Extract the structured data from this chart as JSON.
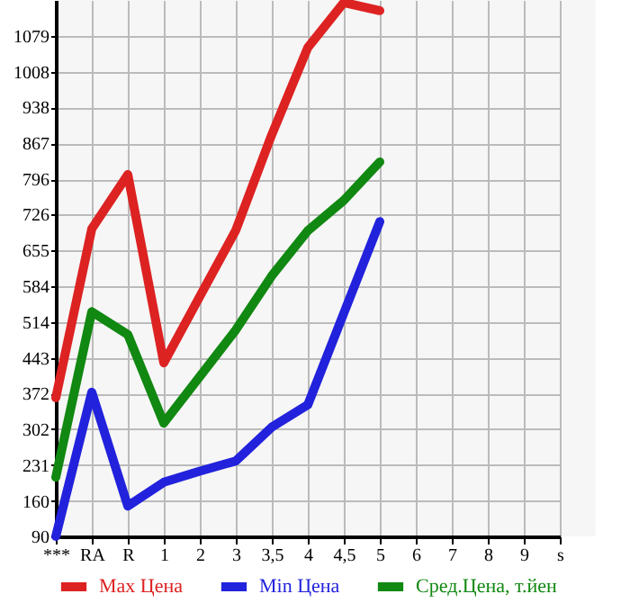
{
  "chart_data": {
    "type": "line",
    "categories": [
      "***",
      "RA",
      "R",
      "1",
      "2",
      "3",
      "3,5",
      "4",
      "4,5",
      "5",
      "6",
      "7",
      "8",
      "9",
      "s"
    ],
    "series": [
      {
        "name": "Max Цена",
        "color": "#dd2222",
        "values": [
          364,
          698,
          805,
          433,
          564,
          695,
          884,
          1056,
          1145,
          1129,
          null,
          null,
          null,
          null,
          null
        ]
      },
      {
        "name": "Min Цена",
        "color": "#2222dd",
        "values": [
          90,
          375,
          150,
          197,
          219,
          239,
          306,
          350,
          531,
          712,
          null,
          null,
          null,
          null,
          null
        ]
      },
      {
        "name": "Сред.Цена, т.йен",
        "color": "#118811",
        "values": [
          207,
          534,
          489,
          314,
          406,
          498,
          605,
          694,
          754,
          830,
          null,
          null,
          null,
          null,
          null
        ]
      }
    ],
    "ylim": [
      90,
      1150
    ],
    "yticks": [
      90,
      160,
      231,
      302,
      372,
      443,
      514,
      584,
      655,
      726,
      796,
      867,
      938,
      1008,
      1079
    ],
    "grid": true,
    "legend": "bottom",
    "marker": "none",
    "line_style": "solid"
  }
}
